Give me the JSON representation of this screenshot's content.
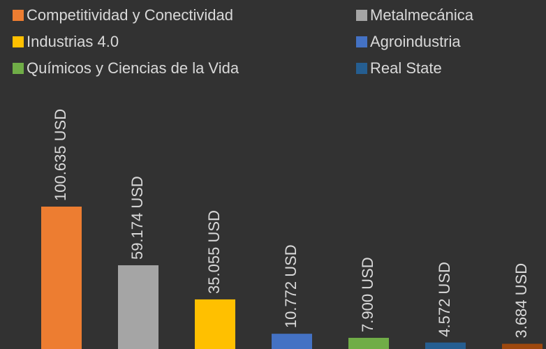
{
  "chart_data": {
    "type": "bar",
    "categories": [
      "Competitividad y Conectividad",
      "Metalmecánica",
      "Industrias 4.0",
      "Agroindustria",
      "Químicos y Ciencias de la Vida",
      "Real State",
      null
    ],
    "values": [
      100635,
      59174,
      35055,
      10772,
      7900,
      4572,
      3684
    ],
    "value_labels": [
      "100.635 USD",
      "59.174 USD",
      "35.055 USD",
      "10.772 USD",
      "7.900 USD",
      "4.572 USD",
      "3.684 USD"
    ],
    "colors": [
      "#ed7d31",
      "#a5a5a5",
      "#ffc000",
      "#4472c4",
      "#70ad47",
      "#255e91",
      "#9e480e"
    ],
    "legend": "top"
  }
}
